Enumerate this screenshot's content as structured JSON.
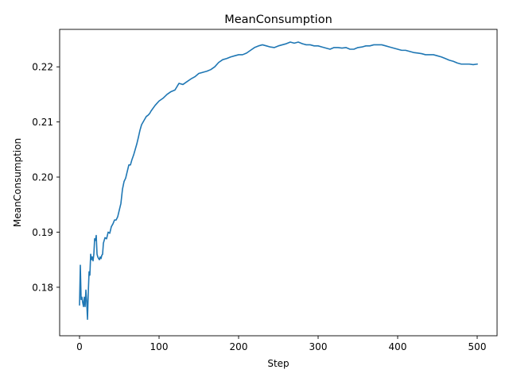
{
  "chart_data": {
    "type": "line",
    "title": "MeanConsumption",
    "xlabel": "Step",
    "ylabel": "MeanConsumption",
    "xlim": [
      -25,
      525
    ],
    "ylim": [
      0.1712,
      0.2268
    ],
    "grid": false,
    "legend": "none",
    "x_ticks": [
      0,
      100,
      200,
      300,
      400,
      500
    ],
    "x_tick_labels": [
      "0",
      "100",
      "200",
      "300",
      "400",
      "500"
    ],
    "y_ticks": [
      0.18,
      0.19,
      0.2,
      0.21,
      0.22
    ],
    "y_tick_labels": [
      "0.18",
      "0.19",
      "0.20",
      "0.21",
      "0.22"
    ],
    "line_color": "#1f77b4",
    "series": [
      {
        "name": "MeanConsumption",
        "x": [
          0,
          1,
          2,
          3,
          4,
          5,
          6,
          7,
          8,
          9,
          10,
          11,
          12,
          13,
          14,
          15,
          16,
          17,
          18,
          19,
          20,
          21,
          22,
          23,
          24,
          25,
          26,
          27,
          28,
          29,
          30,
          32,
          34,
          36,
          38,
          40,
          42,
          44,
          46,
          48,
          50,
          52,
          54,
          56,
          58,
          60,
          62,
          64,
          66,
          68,
          70,
          72,
          74,
          76,
          78,
          80,
          82,
          84,
          86,
          88,
          90,
          95,
          100,
          105,
          110,
          115,
          120,
          125,
          130,
          135,
          140,
          145,
          150,
          155,
          160,
          165,
          170,
          175,
          180,
          185,
          190,
          195,
          200,
          205,
          210,
          215,
          220,
          225,
          230,
          235,
          240,
          245,
          250,
          255,
          260,
          265,
          270,
          275,
          280,
          285,
          290,
          295,
          300,
          305,
          310,
          315,
          320,
          325,
          330,
          335,
          340,
          345,
          350,
          355,
          360,
          365,
          370,
          375,
          380,
          385,
          390,
          395,
          400,
          405,
          410,
          415,
          420,
          425,
          430,
          435,
          440,
          445,
          450,
          455,
          460,
          465,
          470,
          475,
          480,
          485,
          490,
          495,
          500
        ],
        "y": [
          0.1768,
          0.184,
          0.1778,
          0.1782,
          0.1772,
          0.1765,
          0.1782,
          0.1765,
          0.1795,
          0.1775,
          0.1742,
          0.179,
          0.1828,
          0.1822,
          0.186,
          0.185,
          0.1855,
          0.1848,
          0.186,
          0.1888,
          0.1885,
          0.1894,
          0.186,
          0.1855,
          0.1852,
          0.185,
          0.1855,
          0.1852,
          0.1858,
          0.186,
          0.188,
          0.189,
          0.1888,
          0.19,
          0.1898,
          0.191,
          0.1915,
          0.1922,
          0.1922,
          0.1928,
          0.194,
          0.1952,
          0.1978,
          0.1992,
          0.1998,
          0.201,
          0.2022,
          0.2022,
          0.2032,
          0.204,
          0.205,
          0.206,
          0.2072,
          0.2085,
          0.2095,
          0.21,
          0.2105,
          0.211,
          0.2112,
          0.2115,
          0.212,
          0.213,
          0.2138,
          0.2143,
          0.215,
          0.2155,
          0.2158,
          0.217,
          0.2168,
          0.2173,
          0.2178,
          0.2182,
          0.2188,
          0.219,
          0.2192,
          0.2195,
          0.22,
          0.2208,
          0.2213,
          0.2215,
          0.2218,
          0.222,
          0.2222,
          0.2222,
          0.2225,
          0.223,
          0.2235,
          0.2238,
          0.224,
          0.2238,
          0.2236,
          0.2235,
          0.2238,
          0.224,
          0.2242,
          0.2245,
          0.2243,
          0.2245,
          0.2242,
          0.224,
          0.224,
          0.2238,
          0.2238,
          0.2236,
          0.2234,
          0.2232,
          0.2235,
          0.2235,
          0.2234,
          0.2235,
          0.2232,
          0.2232,
          0.2235,
          0.2236,
          0.2238,
          0.2238,
          0.224,
          0.224,
          0.224,
          0.2238,
          0.2236,
          0.2234,
          0.2232,
          0.223,
          0.223,
          0.2228,
          0.2226,
          0.2225,
          0.2224,
          0.2222,
          0.2222,
          0.2222,
          0.222,
          0.2218,
          0.2215,
          0.2212,
          0.221,
          0.2207,
          0.2205,
          0.2205,
          0.2205,
          0.2204,
          0.2205
        ]
      }
    ]
  }
}
